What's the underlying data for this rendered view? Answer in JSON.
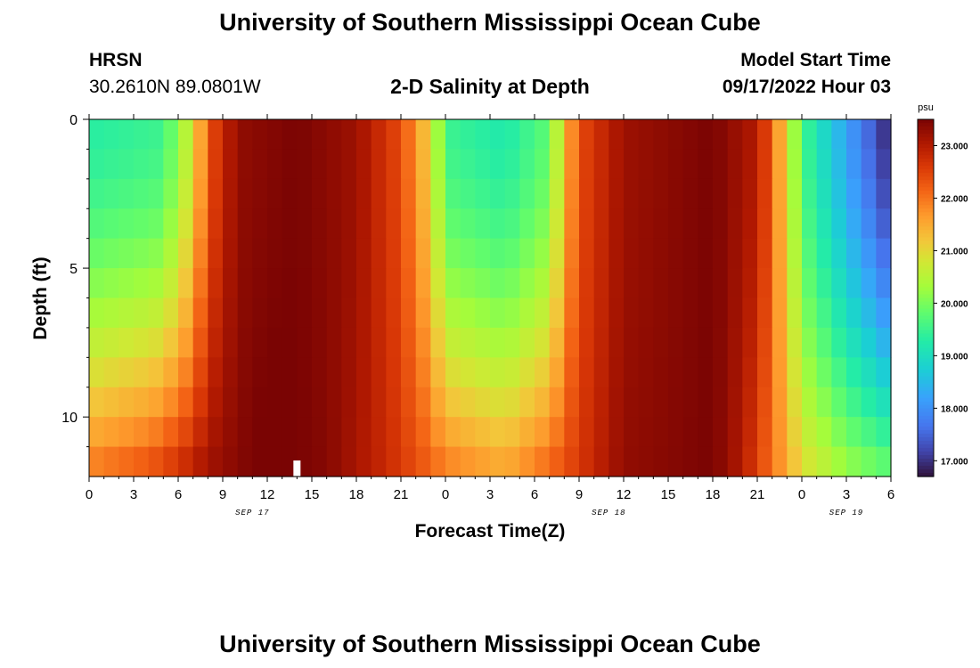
{
  "page": {
    "title_top": "University of Southern Mississippi Ocean Cube",
    "title_bottom": "University of Southern Mississippi Ocean Cube",
    "station": "HRSN",
    "coords": "30.2610N  89.0801W",
    "model_start_label": "Model Start Time",
    "model_start_value": "09/17/2022 Hour 03"
  },
  "chart_data": {
    "type": "heatmap",
    "title": "2-D Salinity at Depth",
    "xlabel": "Forecast Time(Z)",
    "ylabel": "Depth (ft)",
    "colorbar_label": "psu",
    "color_range": [
      16.7,
      23.5
    ],
    "colorbar_ticks": [
      "17.000",
      "18.000",
      "19.000",
      "20.000",
      "21.000",
      "22.000",
      "23.000"
    ],
    "colorbar_tick_values": [
      17,
      18,
      19,
      20,
      21,
      22,
      23
    ],
    "x_hours_range": [
      0,
      54
    ],
    "x_tick_hours": [
      0,
      3,
      6,
      9,
      12,
      15,
      18,
      21,
      24,
      27,
      30,
      33,
      36,
      39,
      42,
      45,
      48,
      51,
      54
    ],
    "x_tick_labels": [
      "0",
      "3",
      "6",
      "9",
      "12",
      "15",
      "18",
      "21",
      "0",
      "3",
      "6",
      "9",
      "12",
      "15",
      "18",
      "21",
      "0",
      "3",
      "6"
    ],
    "date_labels": [
      {
        "hour": 11,
        "label": "SEP 17"
      },
      {
        "hour": 35,
        "label": "SEP 18"
      },
      {
        "hour": 51,
        "label": "SEP 19"
      }
    ],
    "y_range_ft": [
      0,
      12
    ],
    "y_tick_values": [
      0,
      5,
      10
    ],
    "y_tick_labels": [
      "0",
      "5",
      "10"
    ],
    "depth_levels": 12,
    "time_steps": 54,
    "surface_salinity_profile": [
      [
        0,
        19.3
      ],
      [
        5,
        19.5
      ],
      [
        7,
        20.8
      ],
      [
        8,
        22.3
      ],
      [
        10,
        23.3
      ],
      [
        14,
        23.5
      ],
      [
        18,
        23.2
      ],
      [
        21,
        22.4
      ],
      [
        23,
        21.0
      ],
      [
        24,
        19.5
      ],
      [
        28,
        19.2
      ],
      [
        31,
        19.8
      ],
      [
        32,
        21.2
      ],
      [
        33,
        22.4
      ],
      [
        36,
        23.2
      ],
      [
        42,
        23.5
      ],
      [
        45,
        23.0
      ],
      [
        46,
        22.2
      ],
      [
        47,
        20.9
      ],
      [
        48,
        19.6
      ],
      [
        51,
        18.2
      ],
      [
        53,
        17.3
      ],
      [
        54,
        16.8
      ]
    ],
    "bottom_salinity_profile": [
      [
        0,
        22.0
      ],
      [
        4,
        22.4
      ],
      [
        8,
        23.2
      ],
      [
        12,
        23.6
      ],
      [
        16,
        23.4
      ],
      [
        20,
        22.8
      ],
      [
        24,
        22.0
      ],
      [
        28,
        21.6
      ],
      [
        32,
        22.4
      ],
      [
        36,
        23.3
      ],
      [
        42,
        23.5
      ],
      [
        44,
        23.0
      ],
      [
        46,
        22.0
      ],
      [
        48,
        21.0
      ],
      [
        51,
        20.3
      ],
      [
        54,
        19.9
      ]
    ],
    "marker_hour": 14
  }
}
